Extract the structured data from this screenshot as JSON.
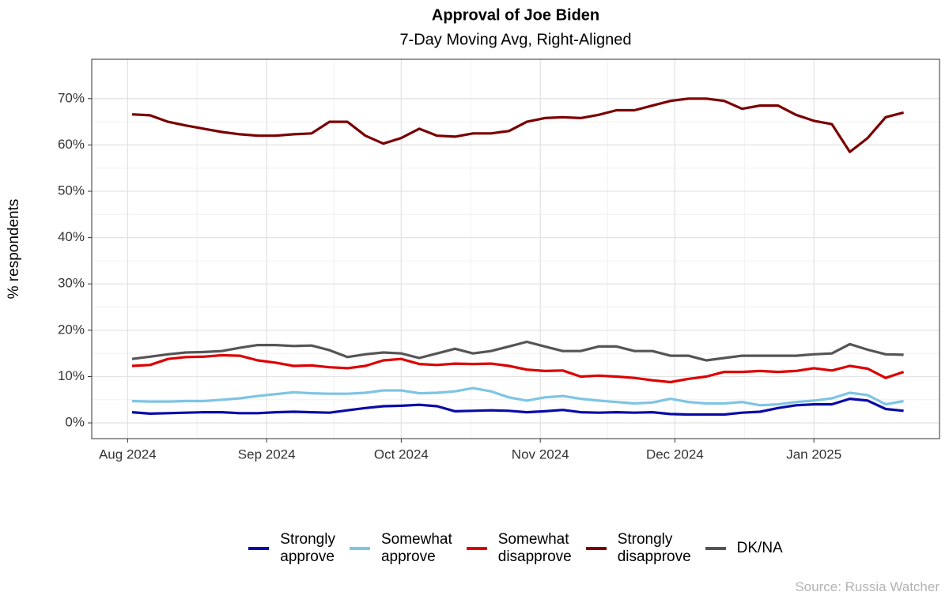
{
  "chart_data": {
    "type": "line",
    "title": "Approval of Joe Biden",
    "subtitle": "7-Day Moving Avg, Right-Aligned",
    "y_label": "% respondents",
    "source": "Source: Russia Watcher",
    "x": [
      1,
      5,
      9,
      13,
      17,
      21,
      25,
      29,
      33,
      37,
      41,
      45,
      49,
      53,
      57,
      61,
      65,
      69,
      73,
      77,
      81,
      85,
      89,
      93,
      97,
      101,
      105,
      109,
      113,
      117,
      121,
      125,
      129,
      133,
      137,
      141,
      145,
      149,
      153,
      157,
      161,
      165,
      169,
      173
    ],
    "xlim": [
      -8,
      181
    ],
    "xticks": [
      {
        "value": 0,
        "label": "Aug 2024"
      },
      {
        "value": 31,
        "label": "Sep 2024"
      },
      {
        "value": 61,
        "label": "Oct 2024"
      },
      {
        "value": 92,
        "label": "Nov 2024"
      },
      {
        "value": 122,
        "label": "Dec 2024"
      },
      {
        "value": 153,
        "label": "Jan 2025"
      }
    ],
    "ylim": [
      -3.4,
      78.5
    ],
    "yticks": [
      {
        "value": 0,
        "label": "0%"
      },
      {
        "value": 10,
        "label": "10%"
      },
      {
        "value": 20,
        "label": "20%"
      },
      {
        "value": 30,
        "label": "30%"
      },
      {
        "value": 40,
        "label": "40%"
      },
      {
        "value": 50,
        "label": "50%"
      },
      {
        "value": 60,
        "label": "60%"
      },
      {
        "value": 70,
        "label": "70%"
      }
    ],
    "grid": true,
    "legend": "bottom",
    "series": [
      {
        "name": "Strongly approve",
        "color": "#0a0aa8",
        "values": [
          2.3,
          2,
          2.1,
          2.2,
          2.3,
          2.3,
          2.1,
          2.1,
          2.3,
          2.4,
          2.3,
          2.2,
          2.7,
          3.2,
          3.6,
          3.7,
          3.9,
          3.6,
          2.5,
          2.6,
          2.7,
          2.6,
          2.3,
          2.5,
          2.8,
          2.3,
          2.2,
          2.3,
          2.2,
          2.3,
          1.9,
          1.8,
          1.8,
          1.8,
          2.2,
          2.4,
          3.2,
          3.8,
          4,
          4,
          5.2,
          4.8,
          3,
          2.6
        ]
      },
      {
        "name": "Somewhat approve",
        "color": "#7ec4e4",
        "values": [
          4.7,
          4.6,
          4.6,
          4.7,
          4.7,
          5,
          5.3,
          5.8,
          6.2,
          6.6,
          6.4,
          6.3,
          6.3,
          6.5,
          7,
          7,
          6.4,
          6.5,
          6.8,
          7.5,
          6.8,
          5.5,
          4.8,
          5.5,
          5.8,
          5.2,
          4.8,
          4.5,
          4.2,
          4.4,
          5.2,
          4.5,
          4.2,
          4.2,
          4.5,
          3.8,
          4,
          4.5,
          4.8,
          5.3,
          6.5,
          6,
          4,
          4.7
        ]
      },
      {
        "name": "Somewhat disapprove",
        "color": "#dd0000",
        "values": [
          12.3,
          12.5,
          13.8,
          14.2,
          14.3,
          14.6,
          14.5,
          13.5,
          13,
          12.3,
          12.4,
          12,
          11.8,
          12.3,
          13.5,
          13.8,
          12.7,
          12.5,
          12.8,
          12.7,
          12.8,
          12.3,
          11.5,
          11.2,
          11.3,
          10,
          10.2,
          10,
          9.7,
          9.2,
          8.8,
          9.5,
          10,
          11,
          11,
          11.2,
          11,
          11.2,
          11.8,
          11.3,
          12.3,
          11.7,
          9.7,
          11
        ]
      },
      {
        "name": "Strongly disapprove",
        "color": "#7a0000",
        "values": [
          66.6,
          66.4,
          65,
          64.2,
          63.5,
          62.8,
          62.3,
          62,
          62,
          62.3,
          62.5,
          65,
          65,
          62,
          60.3,
          61.5,
          63.5,
          62,
          61.8,
          62.5,
          62.5,
          63,
          65,
          65.8,
          66,
          65.8,
          66.5,
          67.5,
          67.5,
          68.5,
          69.5,
          70,
          70,
          69.5,
          67.8,
          68.5,
          68.5,
          66.5,
          65.2,
          64.5,
          58.5,
          61.5,
          66,
          67
        ]
      },
      {
        "name": "DK/NA",
        "color": "#555555",
        "values": [
          13.8,
          14.3,
          14.8,
          15.2,
          15.3,
          15.5,
          16.2,
          16.8,
          16.8,
          16.6,
          16.7,
          15.7,
          14.2,
          14.8,
          15.2,
          15,
          14,
          15,
          16,
          15,
          15.5,
          16.5,
          17.5,
          16.5,
          15.5,
          15.5,
          16.5,
          16.5,
          15.5,
          15.5,
          14.5,
          14.5,
          13.5,
          14,
          14.5,
          14.5,
          14.5,
          14.5,
          14.8,
          15,
          17,
          15.8,
          14.8,
          14.7
        ]
      }
    ]
  }
}
